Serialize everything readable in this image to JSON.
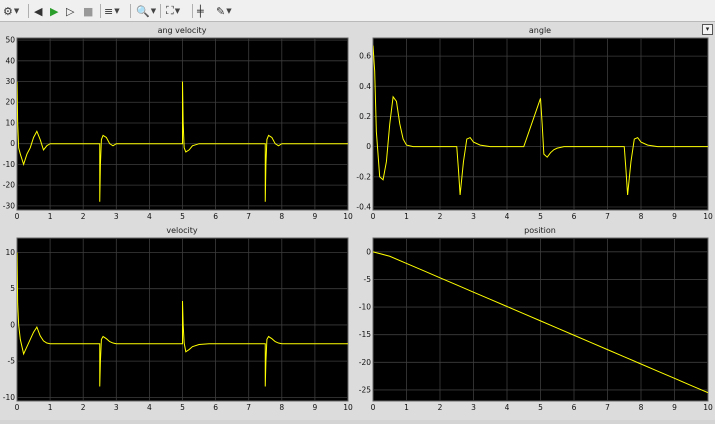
{
  "toolbar": {
    "buttons": [
      {
        "name": "settings-icon",
        "glyph": "⚙",
        "caret": true
      },
      {
        "name": "step-back-icon",
        "glyph": "◀",
        "caret": false
      },
      {
        "name": "run-icon",
        "glyph": "▶",
        "caret": false
      },
      {
        "name": "step-forward-icon",
        "glyph": "▷",
        "caret": false
      },
      {
        "name": "stop-icon",
        "glyph": "■",
        "caret": false
      },
      {
        "name": "highlight-icon",
        "glyph": "≡",
        "caret": true
      },
      {
        "name": "zoom-icon",
        "glyph": "🔍",
        "caret": true
      },
      {
        "name": "fit-to-view-icon",
        "glyph": "⛶",
        "caret": true
      },
      {
        "name": "cursor-measure-icon",
        "glyph": "╪",
        "caret": false
      },
      {
        "name": "style-icon",
        "glyph": "✎",
        "caret": true
      }
    ],
    "dock_glyph": "▾"
  },
  "chart_data": [
    {
      "type": "line",
      "title": "ang velocity",
      "xlim": [
        0,
        10
      ],
      "ylim": [
        -32,
        51
      ],
      "yticks": [
        50,
        40,
        30,
        20,
        10,
        0,
        -10,
        -20,
        -30
      ],
      "xticks": [
        0,
        1,
        2,
        3,
        4,
        5,
        6,
        7,
        8,
        9,
        10
      ],
      "color": "#ffff00",
      "grid": true,
      "x": [
        0,
        0.02,
        0.05,
        0.1,
        0.2,
        0.3,
        0.4,
        0.5,
        0.6,
        0.7,
        0.8,
        0.9,
        1.0,
        1.2,
        1.5,
        2.0,
        2.5,
        2.5,
        2.52,
        2.55,
        2.6,
        2.7,
        2.8,
        2.9,
        3.0,
        3.2,
        3.5,
        4.0,
        4.5,
        5.0,
        5.0,
        5.02,
        5.05,
        5.1,
        5.2,
        5.3,
        5.5,
        5.8,
        6.0,
        6.5,
        7.0,
        7.5,
        7.5,
        7.52,
        7.55,
        7.6,
        7.7,
        7.8,
        7.9,
        8.0,
        8.2,
        8.5,
        9.0,
        9.5,
        10.0
      ],
      "y": [
        30,
        10,
        -2,
        -5,
        -10,
        -5,
        -2,
        3,
        6,
        2,
        -3,
        -1,
        0,
        0,
        0,
        0,
        0,
        -28,
        -10,
        2,
        4,
        3,
        0,
        -1,
        0,
        0,
        0,
        0,
        0,
        0,
        30,
        10,
        -2,
        -4,
        -3,
        -1,
        0,
        0,
        0,
        0,
        0,
        0,
        -28,
        -10,
        2,
        4,
        3,
        0,
        -1,
        0,
        0,
        0,
        0,
        0,
        0
      ]
    },
    {
      "type": "line",
      "title": "angle",
      "xlim": [
        0,
        10
      ],
      "ylim": [
        -0.42,
        0.72
      ],
      "yticks": [
        0.6,
        0.4,
        0.2,
        0,
        -0.2,
        -0.4
      ],
      "xticks": [
        0,
        1,
        2,
        3,
        4,
        5,
        6,
        7,
        8,
        9,
        10
      ],
      "color": "#ffff00",
      "grid": true,
      "x": [
        0,
        0.05,
        0.1,
        0.2,
        0.3,
        0.4,
        0.5,
        0.6,
        0.7,
        0.8,
        0.9,
        1.0,
        1.2,
        1.5,
        2.0,
        2.5,
        2.55,
        2.6,
        2.7,
        2.8,
        2.9,
        3.0,
        3.2,
        3.5,
        4.0,
        4.5,
        5.0,
        5.05,
        5.1,
        5.2,
        5.3,
        5.4,
        5.5,
        5.7,
        6.0,
        6.5,
        7.0,
        7.5,
        7.55,
        7.6,
        7.7,
        7.8,
        7.9,
        8.0,
        8.2,
        8.5,
        9.0,
        9.5,
        10.0
      ],
      "y": [
        0.67,
        0.5,
        0.1,
        -0.2,
        -0.22,
        -0.1,
        0.15,
        0.33,
        0.3,
        0.15,
        0.05,
        0.01,
        0,
        0,
        0,
        0,
        -0.15,
        -0.32,
        -0.1,
        0.05,
        0.06,
        0.03,
        0.01,
        0,
        0,
        0,
        0.32,
        0.15,
        -0.05,
        -0.07,
        -0.04,
        -0.02,
        -0.01,
        0,
        0,
        0,
        0,
        0,
        -0.15,
        -0.32,
        -0.1,
        0.05,
        0.06,
        0.03,
        0.01,
        0,
        0,
        0,
        0
      ]
    },
    {
      "type": "line",
      "title": "velocity",
      "xlim": [
        0,
        10
      ],
      "ylim": [
        -10.5,
        12
      ],
      "yticks": [
        10,
        5,
        0,
        -5,
        -10
      ],
      "xticks": [
        0,
        1,
        2,
        3,
        4,
        5,
        6,
        7,
        8,
        9,
        10
      ],
      "color": "#ffff00",
      "grid": true,
      "x": [
        0,
        0.02,
        0.05,
        0.1,
        0.2,
        0.3,
        0.4,
        0.5,
        0.6,
        0.7,
        0.8,
        0.9,
        1.0,
        1.2,
        1.5,
        2.0,
        2.5,
        2.5,
        2.52,
        2.55,
        2.6,
        2.7,
        2.8,
        2.9,
        3.0,
        3.2,
        3.5,
        4.0,
        4.5,
        5.0,
        5.0,
        5.02,
        5.05,
        5.1,
        5.2,
        5.3,
        5.5,
        5.8,
        6.0,
        6.5,
        7.0,
        7.5,
        7.5,
        7.52,
        7.55,
        7.6,
        7.7,
        7.8,
        7.9,
        8.0,
        8.2,
        8.5,
        9.0,
        9.5,
        10.0
      ],
      "y": [
        10,
        3,
        0,
        -2,
        -4,
        -3,
        -2,
        -1,
        -0.3,
        -1.5,
        -2.2,
        -2.5,
        -2.6,
        -2.6,
        -2.6,
        -2.6,
        -2.6,
        -8.5,
        -5,
        -2,
        -1.6,
        -1.9,
        -2.3,
        -2.5,
        -2.6,
        -2.6,
        -2.6,
        -2.6,
        -2.6,
        -2.6,
        3.3,
        0,
        -2.5,
        -3.7,
        -3.4,
        -3.0,
        -2.7,
        -2.6,
        -2.6,
        -2.6,
        -2.6,
        -2.6,
        -8.5,
        -5,
        -2,
        -1.6,
        -1.9,
        -2.3,
        -2.5,
        -2.6,
        -2.6,
        -2.6,
        -2.6,
        -2.6,
        -2.6
      ]
    },
    {
      "type": "line",
      "title": "position",
      "xlim": [
        0,
        10
      ],
      "ylim": [
        -27,
        2.5
      ],
      "yticks": [
        0,
        -5,
        -10,
        -15,
        -20,
        -25
      ],
      "xticks": [
        0,
        1,
        2,
        3,
        4,
        5,
        6,
        7,
        8,
        9,
        10
      ],
      "color": "#ffff00",
      "grid": true,
      "x": [
        0,
        0.5,
        1.0,
        1.5,
        2.0,
        2.5,
        3.0,
        3.5,
        4.0,
        4.5,
        5.0,
        5.5,
        6.0,
        6.5,
        7.0,
        7.5,
        8.0,
        8.5,
        9.0,
        9.5,
        10.0
      ],
      "y": [
        0,
        -0.8,
        -2.1,
        -3.4,
        -4.7,
        -6.0,
        -7.3,
        -8.6,
        -9.9,
        -11.2,
        -12.5,
        -13.8,
        -15.1,
        -16.4,
        -17.7,
        -19.0,
        -20.3,
        -21.6,
        -22.9,
        -24.2,
        -25.5
      ]
    }
  ]
}
